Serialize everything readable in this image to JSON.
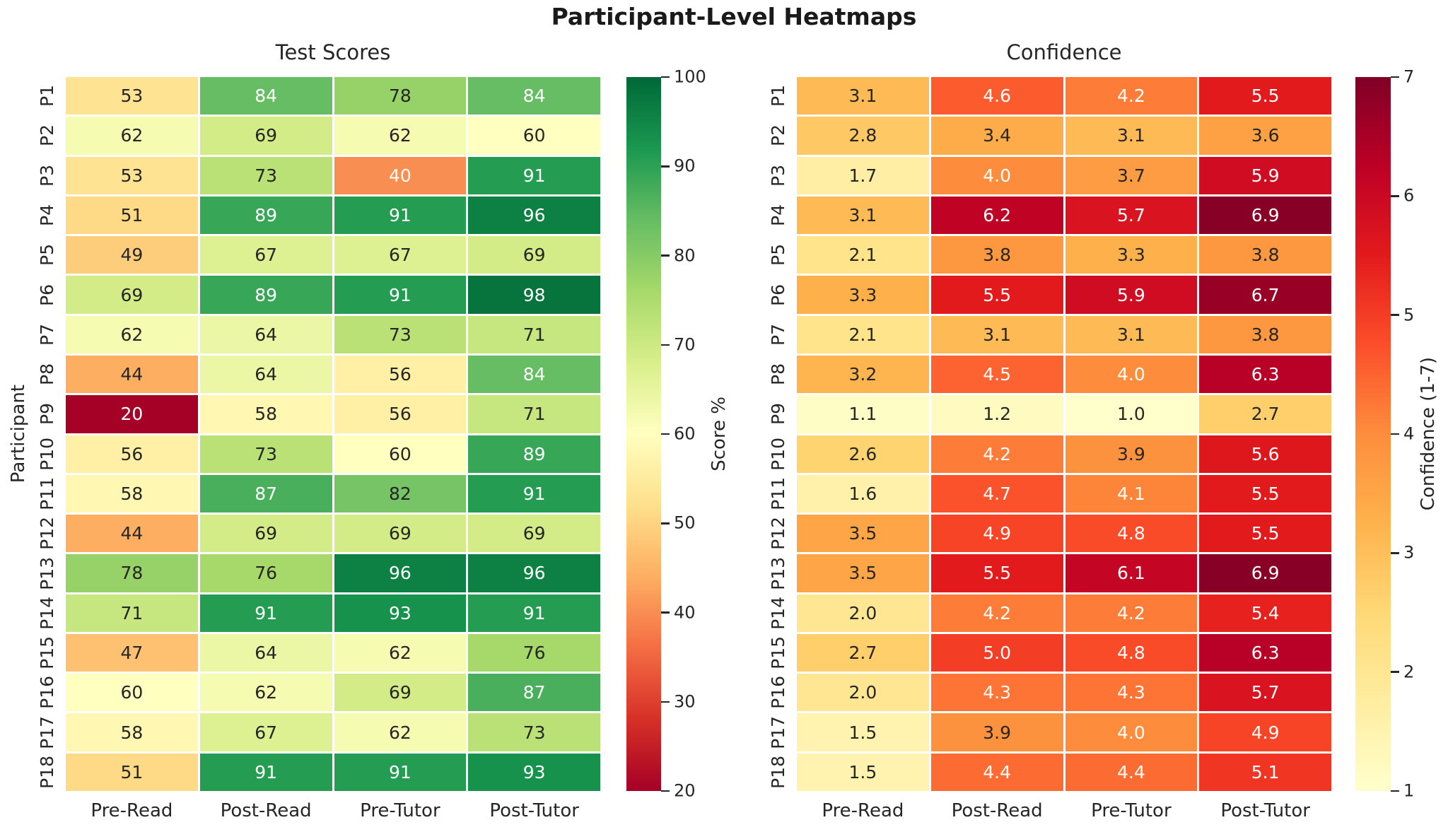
{
  "figure": {
    "title": "Participant-Level Heatmaps"
  },
  "colors": {
    "background": "#ffffff",
    "tick_text": "#262626",
    "title_text": "#1a1a1a",
    "annot_dark": "#262626",
    "annot_light": "#ffffff",
    "grid_line": "#ffffff"
  },
  "chart_data": [
    {
      "type": "heatmap",
      "title": "Test Scores",
      "ylabel": "Participant",
      "x_ticklabels": [
        "Pre-Read",
        "Post-Read",
        "Pre-Tutor",
        "Post-Tutor"
      ],
      "y_ticklabels": [
        "P1",
        "P2",
        "P3",
        "P4",
        "P5",
        "P6",
        "P7",
        "P8",
        "P9",
        "P10",
        "P11",
        "P12",
        "P13",
        "P14",
        "P15",
        "P16",
        "P17",
        "P18"
      ],
      "vmin": 20,
      "vmax": 100,
      "decimals": 0,
      "colormap": {
        "name": "RdYlGn",
        "anchors": [
          "#a50026",
          "#d73027",
          "#f46d43",
          "#fdae61",
          "#fee08b",
          "#ffffbf",
          "#d9ef8b",
          "#a6d96a",
          "#66bd63",
          "#1a9850",
          "#006837"
        ]
      },
      "colorbar": {
        "label": "Score %",
        "ticks": [
          20,
          30,
          40,
          50,
          60,
          70,
          80,
          90,
          100
        ]
      },
      "values": [
        [
          53,
          84,
          78,
          84
        ],
        [
          62,
          69,
          62,
          60
        ],
        [
          53,
          73,
          40,
          91
        ],
        [
          51,
          89,
          91,
          96
        ],
        [
          49,
          67,
          67,
          69
        ],
        [
          69,
          89,
          91,
          98
        ],
        [
          62,
          64,
          73,
          71
        ],
        [
          44,
          64,
          56,
          84
        ],
        [
          20,
          58,
          56,
          71
        ],
        [
          56,
          73,
          60,
          89
        ],
        [
          58,
          87,
          82,
          91
        ],
        [
          44,
          69,
          69,
          69
        ],
        [
          78,
          76,
          96,
          96
        ],
        [
          71,
          91,
          93,
          91
        ],
        [
          47,
          64,
          62,
          76
        ],
        [
          60,
          62,
          69,
          87
        ],
        [
          58,
          67,
          62,
          73
        ],
        [
          51,
          91,
          91,
          93
        ]
      ]
    },
    {
      "type": "heatmap",
      "title": "Confidence",
      "ylabel": "",
      "x_ticklabels": [
        "Pre-Read",
        "Post-Read",
        "Pre-Tutor",
        "Post-Tutor"
      ],
      "y_ticklabels": [
        "P1",
        "P2",
        "P3",
        "P4",
        "P5",
        "P6",
        "P7",
        "P8",
        "P9",
        "P10",
        "P11",
        "P12",
        "P13",
        "P14",
        "P15",
        "P16",
        "P17",
        "P18"
      ],
      "vmin": 1,
      "vmax": 7,
      "decimals": 1,
      "colormap": {
        "name": "YlOrRd",
        "anchors": [
          "#ffffcc",
          "#ffeda0",
          "#fed976",
          "#feb24c",
          "#fd8d3c",
          "#fc4e2a",
          "#e31a1c",
          "#bd0026",
          "#800026"
        ]
      },
      "colorbar": {
        "label": "Confidence (1-7)",
        "ticks": [
          1,
          2,
          3,
          4,
          5,
          6,
          7
        ]
      },
      "values": [
        [
          3.1,
          4.6,
          4.2,
          5.5
        ],
        [
          2.8,
          3.4,
          3.1,
          3.6
        ],
        [
          1.7,
          4.0,
          3.7,
          5.9
        ],
        [
          3.1,
          6.2,
          5.7,
          6.9
        ],
        [
          2.1,
          3.8,
          3.3,
          3.8
        ],
        [
          3.3,
          5.5,
          5.9,
          6.7
        ],
        [
          2.1,
          3.1,
          3.1,
          3.8
        ],
        [
          3.2,
          4.5,
          4.0,
          6.3
        ],
        [
          1.1,
          1.2,
          1.0,
          2.7
        ],
        [
          2.6,
          4.2,
          3.9,
          5.6
        ],
        [
          1.6,
          4.7,
          4.1,
          5.5
        ],
        [
          3.5,
          4.9,
          4.8,
          5.5
        ],
        [
          3.5,
          5.5,
          6.1,
          6.9
        ],
        [
          2.0,
          4.2,
          4.2,
          5.4
        ],
        [
          2.7,
          5.0,
          4.8,
          6.3
        ],
        [
          2.0,
          4.3,
          4.3,
          5.7
        ],
        [
          1.5,
          3.9,
          4.0,
          4.9
        ],
        [
          1.5,
          4.4,
          4.4,
          5.1
        ]
      ]
    }
  ]
}
